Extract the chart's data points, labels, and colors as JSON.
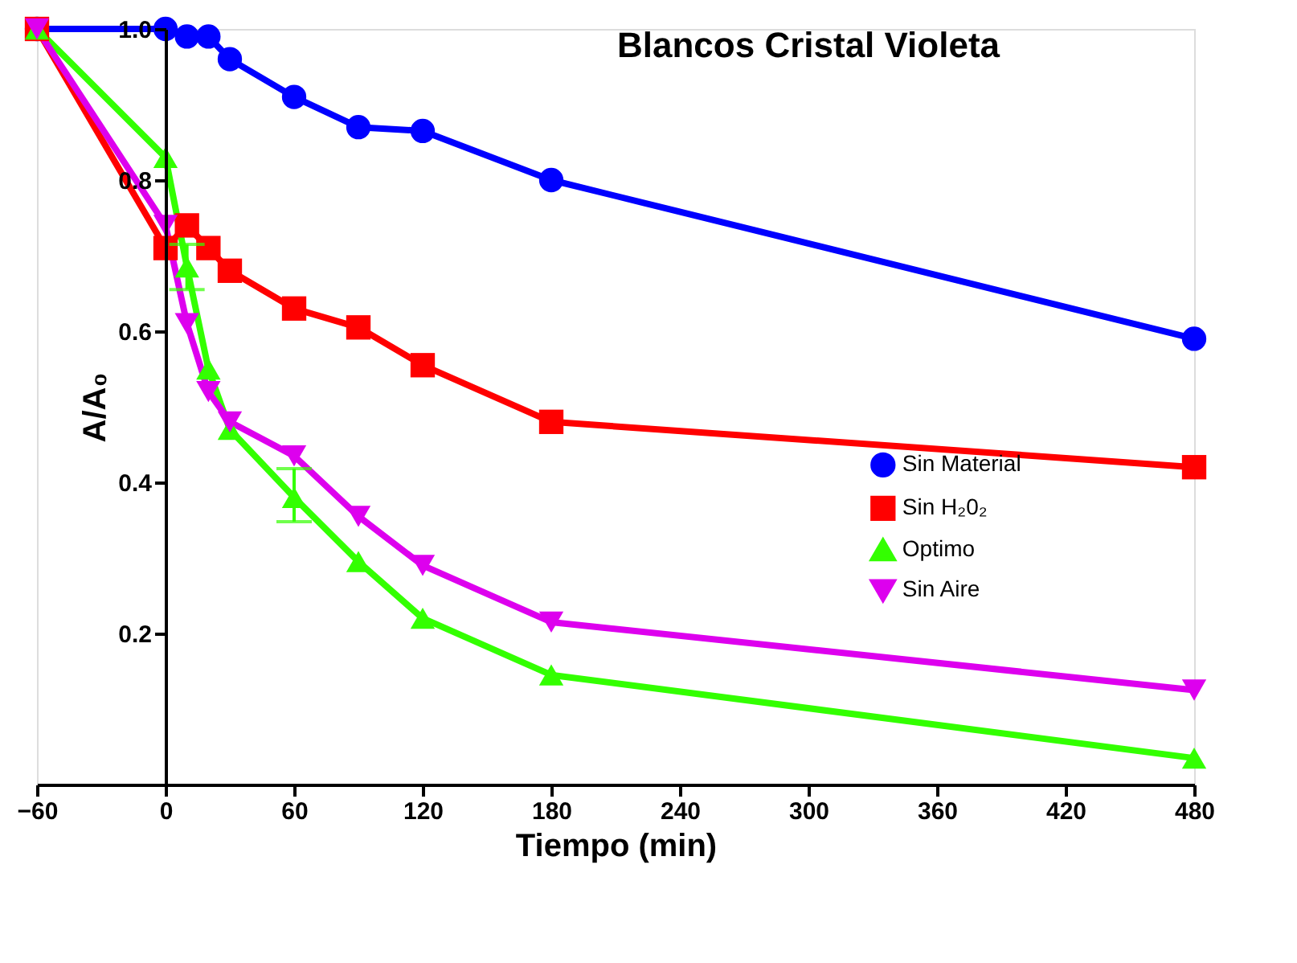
{
  "chart_data": {
    "type": "line",
    "title": "Blancos Cristal Violeta",
    "xlabel": "Tiempo (min)",
    "ylabel": "A/A₀",
    "x": [
      -60,
      0,
      10,
      20,
      30,
      60,
      90,
      120,
      180,
      480
    ],
    "xlim": [
      -60,
      480
    ],
    "xticks": [
      -60,
      0,
      60,
      120,
      180,
      240,
      300,
      360,
      420,
      480
    ],
    "ylim": [
      0,
      1.0
    ],
    "yticks": [
      0.2,
      0.4,
      0.6,
      0.8,
      {
        "value": 1.0,
        "label": "1.0"
      }
    ],
    "grid": false,
    "legend": "right",
    "line_style": "solid",
    "series": [
      {
        "name": "Sin Material",
        "color": "#0000ff",
        "marker": "circle",
        "values": [
          1.0,
          1.0,
          0.99,
          0.99,
          0.96,
          0.91,
          0.87,
          0.865,
          0.8,
          0.59
        ]
      },
      {
        "name": "Sin H₂0₂",
        "color": "#ff0000",
        "marker": "square",
        "values": [
          1.0,
          0.71,
          0.74,
          0.71,
          0.68,
          0.63,
          0.605,
          0.555,
          0.48,
          0.42
        ]
      },
      {
        "name": "Optimo",
        "color": "#33ff00",
        "marker": "triangle",
        "values": [
          1.0,
          0.83,
          0.685,
          0.55,
          0.47,
          0.38,
          0.295,
          0.22,
          0.145,
          0.035
        ],
        "errors": [
          null,
          null,
          [
            0.655,
            0.715
          ],
          null,
          null,
          [
            0.348,
            0.418
          ],
          null,
          null,
          null,
          null
        ]
      },
      {
        "name": "Sin Aire",
        "color": "#dd00ee",
        "marker": "triangle-down",
        "values": [
          1.0,
          0.74,
          0.61,
          0.52,
          0.48,
          0.435,
          0.355,
          0.29,
          0.215,
          0.125
        ]
      }
    ]
  }
}
